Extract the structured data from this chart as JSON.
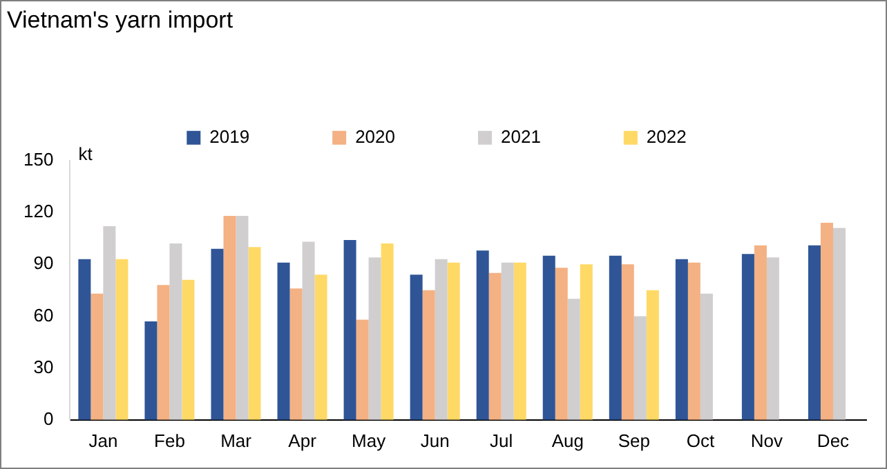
{
  "chart_data": {
    "type": "bar",
    "title": "Vietnam's yarn import",
    "ylabel": "kt",
    "categories": [
      "Jan",
      "Feb",
      "Mar",
      "Apr",
      "May",
      "Jun",
      "Jul",
      "Aug",
      "Sep",
      "Oct",
      "Nov",
      "Dec"
    ],
    "series": [
      {
        "name": "2019",
        "color": "#2f5597",
        "values": [
          93,
          57,
          99,
          91,
          104,
          84,
          98,
          95,
          95,
          93,
          96,
          101
        ]
      },
      {
        "name": "2020",
        "color": "#f4b183",
        "values": [
          73,
          78,
          118,
          76,
          58,
          75,
          85,
          88,
          90,
          91,
          101,
          114
        ]
      },
      {
        "name": "2021",
        "color": "#d0cece",
        "values": [
          112,
          102,
          118,
          103,
          94,
          93,
          91,
          70,
          60,
          73,
          94,
          111
        ]
      },
      {
        "name": "2022",
        "color": "#ffd966",
        "values": [
          93,
          81,
          100,
          84,
          102,
          91,
          91,
          90,
          75,
          null,
          null,
          null
        ]
      }
    ],
    "ylim": [
      0,
      150
    ],
    "yticks": [
      0,
      30,
      60,
      90,
      120,
      150
    ],
    "grid": false,
    "legend": "top"
  }
}
